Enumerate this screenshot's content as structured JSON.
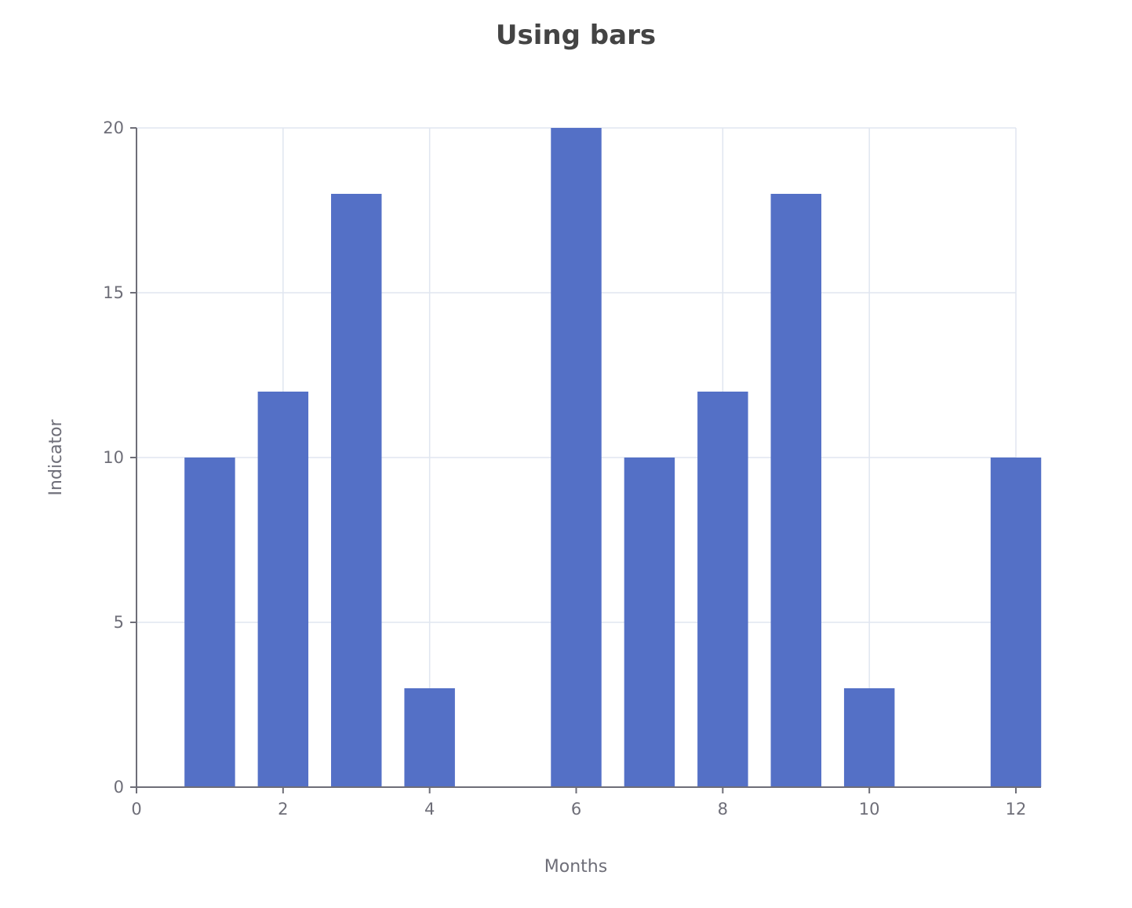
{
  "chart_data": {
    "type": "bar",
    "title": "Using bars",
    "xlabel": "Months",
    "ylabel": "Indicator",
    "x": [
      1,
      2,
      3,
      4,
      5,
      6,
      7,
      8,
      9,
      10,
      11,
      12
    ],
    "series": [
      {
        "values": [
          10,
          12,
          18,
          3,
          0,
          20,
          10,
          12,
          18,
          3,
          0,
          10
        ],
        "color": "#5470c6"
      }
    ],
    "xlim": [
      0,
      12
    ],
    "ylim": [
      0,
      20
    ],
    "x_ticks": [
      0,
      2,
      4,
      6,
      8,
      10,
      12
    ],
    "y_ticks": [
      0,
      5,
      10,
      15,
      20
    ],
    "grid": true,
    "legend": "none"
  }
}
